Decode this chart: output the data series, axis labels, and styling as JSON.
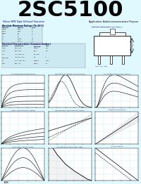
{
  "title": "2SC5100",
  "title_bg": "#00FFFF",
  "title_color": "#000000",
  "title_fontsize": 22,
  "page_bg": "#E0F8FF",
  "subtitle_left": "Silicon NPN Triple Diffused Transistor",
  "subtitle_right": "Application: Audio/communications Purpose",
  "page_number": "128",
  "grid_color": "#AADDEE",
  "table_bg": "#CCE8F0",
  "graph_titles": [
    "I-C vs Breakdown Curves (typical)",
    "Transition vs Breakdown Curves (typical)",
    "hFE vs Temperature Chars. (typical)",
    "Base-Ic Characteristics (typical)",
    "Junction Temp. Characteristics (typical)",
    "Thermal Characteristics",
    "Ic-Ib Characteristics (typical)",
    "Safe Operating Area (Output Adder)",
    "Vce-Vc Derating"
  ]
}
